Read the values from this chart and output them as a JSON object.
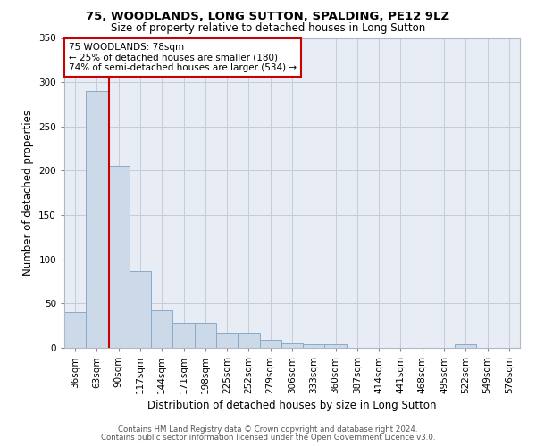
{
  "title1": "75, WOODLANDS, LONG SUTTON, SPALDING, PE12 9LZ",
  "title2": "Size of property relative to detached houses in Long Sutton",
  "xlabel": "Distribution of detached houses by size in Long Sutton",
  "ylabel": "Number of detached properties",
  "footer1": "Contains HM Land Registry data © Crown copyright and database right 2024.",
  "footer2": "Contains public sector information licensed under the Open Government Licence v3.0.",
  "annotation_line1": "75 WOODLANDS: 78sqm",
  "annotation_line2": "← 25% of detached houses are smaller (180)",
  "annotation_line3": "74% of semi-detached houses are larger (534) →",
  "bar_values": [
    40,
    290,
    205,
    87,
    42,
    28,
    28,
    17,
    17,
    9,
    5,
    4,
    4,
    0,
    0,
    0,
    0,
    0,
    4,
    0,
    0
  ],
  "bar_labels": [
    "36sqm",
    "63sqm",
    "90sqm",
    "117sqm",
    "144sqm",
    "171sqm",
    "198sqm",
    "225sqm",
    "252sqm",
    "279sqm",
    "306sqm",
    "333sqm",
    "360sqm",
    "387sqm",
    "414sqm",
    "441sqm",
    "468sqm",
    "495sqm",
    "522sqm",
    "549sqm",
    "576sqm"
  ],
  "bar_color": "#ccd9e8",
  "bar_edgecolor": "#8aaac8",
  "vline_x": 1.57,
  "vline_color": "#cc0000",
  "annotation_box_edgecolor": "#cc0000",
  "plot_bg_color": "#e8edf5",
  "background_color": "#ffffff",
  "grid_color": "#c5cdd8",
  "ylim": [
    0,
    350
  ],
  "yticks": [
    0,
    50,
    100,
    150,
    200,
    250,
    300,
    350
  ]
}
